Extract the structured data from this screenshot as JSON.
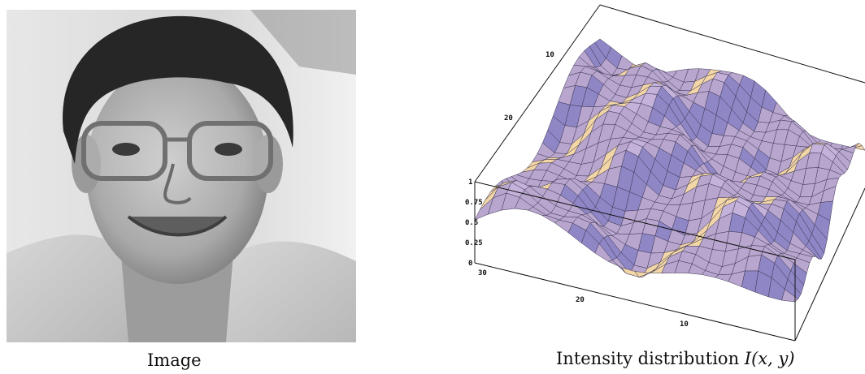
{
  "photo": {
    "caption": "Image"
  },
  "plot": {
    "caption_prefix": "Intensity distribution",
    "caption_math": "I(x, y)",
    "colors": {
      "surface": "#b9a6cf",
      "surface_dark": "#8f86c6",
      "highlight": "#f2d6a6",
      "mesh": "#3a3550"
    }
  },
  "chart_data": {
    "type": "surface",
    "z_ticks": [
      "0",
      "0.25",
      "0.5",
      "0.75",
      "1"
    ],
    "x_ticks": [
      "10",
      "20",
      "30"
    ],
    "y_ticks": [
      "10",
      "20"
    ],
    "zlim": [
      0,
      1
    ],
    "grid": false
  }
}
